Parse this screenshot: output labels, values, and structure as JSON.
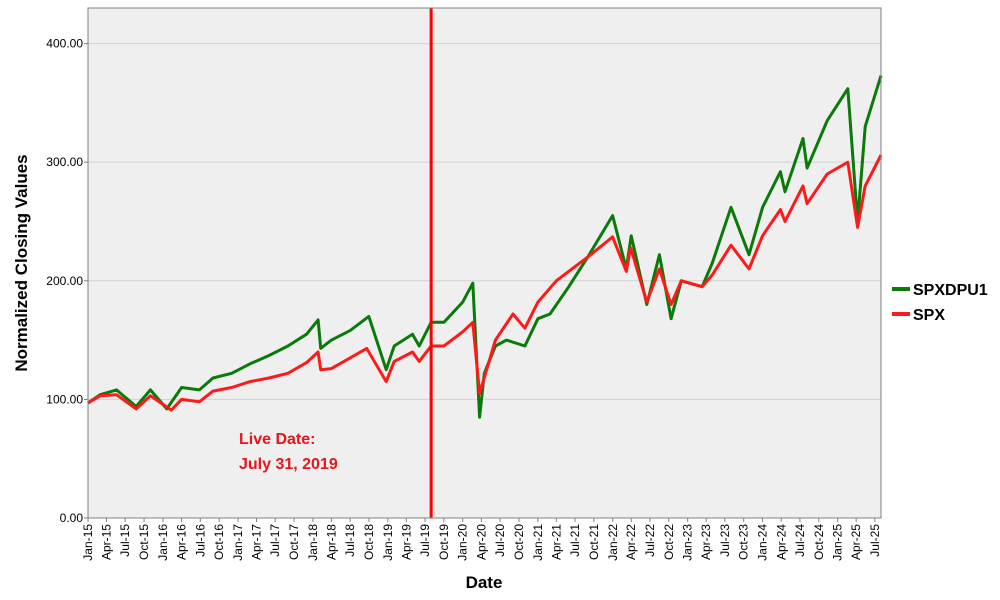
{
  "chart_data": {
    "type": "line",
    "xlabel": "Date",
    "ylabel": "Normalized Closing Values",
    "ylim": [
      0,
      430
    ],
    "yticks": [
      "0.00",
      "100.00",
      "200.00",
      "300.00",
      "400.00"
    ],
    "xticks": [
      "Jan-15",
      "Apr-15",
      "Jul-15",
      "Oct-15",
      "Jan-16",
      "Apr-16",
      "Jul-16",
      "Oct-16",
      "Jan-17",
      "Apr-17",
      "Jul-17",
      "Oct-17",
      "Jan-18",
      "Apr-18",
      "Jul-18",
      "Oct-18",
      "Jan-19",
      "Apr-19",
      "Jul-19",
      "Oct-19",
      "Jan-20",
      "Apr-20",
      "Jul-20",
      "Oct-20",
      "Jan-21",
      "Apr-21",
      "Jul-21",
      "Oct-21",
      "Jan-22",
      "Apr-22",
      "Jul-22",
      "Oct-22",
      "Jan-23",
      "Apr-23",
      "Jul-23",
      "Oct-23",
      "Jan-24",
      "Apr-24",
      "Jul-24",
      "Oct-24",
      "Jan-25",
      "Apr-25",
      "Jul-25"
    ],
    "grid": true,
    "legend_position": "right",
    "vline": {
      "x": "2019-07-31",
      "color": "#ff0000"
    },
    "annotation": {
      "lines": [
        "Live Date:",
        "July 31, 2019"
      ],
      "color": "#e8141c"
    },
    "series": [
      {
        "name": "SPXDPU1",
        "color": "#0a7a0a",
        "points": [
          [
            "2015-01-01",
            97
          ],
          [
            "2015-03-01",
            104
          ],
          [
            "2015-05-20",
            108
          ],
          [
            "2015-08-24",
            94
          ],
          [
            "2015-11-01",
            108
          ],
          [
            "2016-01-20",
            92
          ],
          [
            "2016-04-01",
            110
          ],
          [
            "2016-06-27",
            108
          ],
          [
            "2016-09-01",
            118
          ],
          [
            "2016-12-01",
            122
          ],
          [
            "2017-03-01",
            130
          ],
          [
            "2017-06-01",
            137
          ],
          [
            "2017-09-01",
            145
          ],
          [
            "2017-12-01",
            155
          ],
          [
            "2018-01-26",
            167
          ],
          [
            "2018-02-08",
            143
          ],
          [
            "2018-04-01",
            150
          ],
          [
            "2018-07-01",
            158
          ],
          [
            "2018-09-30",
            170
          ],
          [
            "2018-12-24",
            125
          ],
          [
            "2019-02-01",
            145
          ],
          [
            "2019-05-01",
            155
          ],
          [
            "2019-06-03",
            145
          ],
          [
            "2019-07-31",
            165
          ],
          [
            "2019-10-01",
            165
          ],
          [
            "2020-01-01",
            182
          ],
          [
            "2020-02-19",
            198
          ],
          [
            "2020-03-23",
            85
          ],
          [
            "2020-04-15",
            122
          ],
          [
            "2020-06-08",
            145
          ],
          [
            "2020-08-01",
            150
          ],
          [
            "2020-10-30",
            145
          ],
          [
            "2021-01-01",
            168
          ],
          [
            "2021-03-01",
            172
          ],
          [
            "2021-06-01",
            195
          ],
          [
            "2021-09-01",
            220
          ],
          [
            "2021-12-31",
            255
          ],
          [
            "2022-03-08",
            210
          ],
          [
            "2022-04-01",
            238
          ],
          [
            "2022-06-16",
            180
          ],
          [
            "2022-08-16",
            222
          ],
          [
            "2022-10-12",
            168
          ],
          [
            "2022-12-01",
            200
          ],
          [
            "2023-03-13",
            195
          ],
          [
            "2023-05-01",
            215
          ],
          [
            "2023-07-31",
            262
          ],
          [
            "2023-10-27",
            222
          ],
          [
            "2024-01-01",
            262
          ],
          [
            "2024-03-28",
            292
          ],
          [
            "2024-04-19",
            275
          ],
          [
            "2024-07-16",
            320
          ],
          [
            "2024-08-05",
            295
          ],
          [
            "2024-11-11",
            335
          ],
          [
            "2025-02-19",
            362
          ],
          [
            "2025-04-08",
            250
          ],
          [
            "2025-05-15",
            330
          ],
          [
            "2025-07-31",
            373
          ]
        ]
      },
      {
        "name": "SPX",
        "color": "#ff1a1a",
        "points": [
          [
            "2015-01-01",
            97
          ],
          [
            "2015-03-01",
            103
          ],
          [
            "2015-05-20",
            104
          ],
          [
            "2015-08-24",
            92
          ],
          [
            "2015-11-01",
            103
          ],
          [
            "2016-02-11",
            91
          ],
          [
            "2016-04-01",
            100
          ],
          [
            "2016-06-27",
            98
          ],
          [
            "2016-09-01",
            107
          ],
          [
            "2016-12-01",
            110
          ],
          [
            "2017-03-01",
            115
          ],
          [
            "2017-06-01",
            118
          ],
          [
            "2017-09-01",
            122
          ],
          [
            "2017-12-01",
            131
          ],
          [
            "2018-01-26",
            140
          ],
          [
            "2018-02-08",
            125
          ],
          [
            "2018-04-01",
            126
          ],
          [
            "2018-07-01",
            135
          ],
          [
            "2018-09-20",
            143
          ],
          [
            "2018-12-24",
            115
          ],
          [
            "2019-02-01",
            132
          ],
          [
            "2019-05-01",
            140
          ],
          [
            "2019-06-03",
            132
          ],
          [
            "2019-07-31",
            145
          ],
          [
            "2019-10-01",
            145
          ],
          [
            "2020-01-01",
            157
          ],
          [
            "2020-02-19",
            165
          ],
          [
            "2020-03-23",
            105
          ],
          [
            "2020-06-08",
            150
          ],
          [
            "2020-09-02",
            172
          ],
          [
            "2020-10-30",
            160
          ],
          [
            "2021-01-01",
            182
          ],
          [
            "2021-04-01",
            200
          ],
          [
            "2021-06-01",
            208
          ],
          [
            "2021-09-01",
            220
          ],
          [
            "2021-12-31",
            237
          ],
          [
            "2022-03-08",
            208
          ],
          [
            "2022-03-29",
            228
          ],
          [
            "2022-06-16",
            182
          ],
          [
            "2022-08-16",
            210
          ],
          [
            "2022-10-12",
            180
          ],
          [
            "2022-12-01",
            200
          ],
          [
            "2023-03-13",
            195
          ],
          [
            "2023-05-01",
            205
          ],
          [
            "2023-07-31",
            230
          ],
          [
            "2023-10-27",
            210
          ],
          [
            "2024-01-01",
            238
          ],
          [
            "2024-03-28",
            260
          ],
          [
            "2024-04-19",
            250
          ],
          [
            "2024-07-16",
            280
          ],
          [
            "2024-08-05",
            265
          ],
          [
            "2024-11-11",
            290
          ],
          [
            "2025-02-19",
            300
          ],
          [
            "2025-04-08",
            245
          ],
          [
            "2025-05-15",
            280
          ],
          [
            "2025-07-31",
            306
          ]
        ]
      }
    ]
  }
}
